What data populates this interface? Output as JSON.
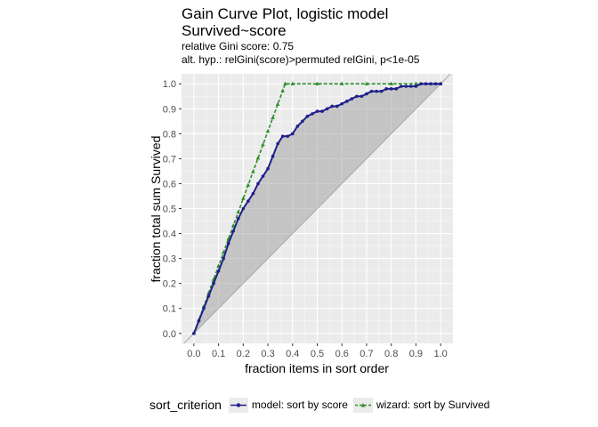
{
  "chart_data": {
    "type": "line",
    "title": "Gain Curve Plot, logistic model",
    "title_line2": "Survived~score",
    "subtitle_line1": "relative Gini score: 0.75",
    "subtitle_line2": "alt. hyp.: relGini(score)>permuted relGini, p<1e-05",
    "xlabel": "fraction items in sort order",
    "ylabel": "fraction total sum Survived",
    "xlim": [
      -0.05,
      1.05
    ],
    "ylim": [
      -0.04,
      1.04
    ],
    "x_ticks": [
      "0.0",
      "0.1",
      "0.2",
      "0.3",
      "0.4",
      "0.5",
      "0.6",
      "0.7",
      "0.8",
      "0.9",
      "1.0"
    ],
    "y_ticks": [
      "0.0",
      "0.1",
      "0.2",
      "0.3",
      "0.4",
      "0.5",
      "0.6",
      "0.7",
      "0.8",
      "0.9",
      "1.0"
    ],
    "grid": true,
    "legend_title": "sort_criterion",
    "legend_position": "bottom",
    "colors": {
      "model": "#1f1f8c",
      "wizard": "#2f8f2f",
      "panel": "#ebebeb",
      "shade": "#9e9e9e",
      "diagonal": "#a8a8a8"
    },
    "series": [
      {
        "name": "model: sort by score",
        "x": [
          0,
          0.02,
          0.04,
          0.06,
          0.08,
          0.1,
          0.12,
          0.14,
          0.16,
          0.18,
          0.2,
          0.22,
          0.24,
          0.26,
          0.28,
          0.3,
          0.32,
          0.34,
          0.36,
          0.38,
          0.4,
          0.42,
          0.44,
          0.46,
          0.48,
          0.5,
          0.52,
          0.54,
          0.56,
          0.58,
          0.6,
          0.62,
          0.64,
          0.66,
          0.68,
          0.7,
          0.72,
          0.74,
          0.76,
          0.78,
          0.8,
          0.82,
          0.84,
          0.86,
          0.88,
          0.9,
          0.92,
          0.94,
          0.96,
          0.98,
          1.0
        ],
        "y": [
          0,
          0.05,
          0.1,
          0.15,
          0.2,
          0.25,
          0.3,
          0.36,
          0.41,
          0.46,
          0.5,
          0.53,
          0.56,
          0.6,
          0.63,
          0.66,
          0.71,
          0.76,
          0.79,
          0.79,
          0.8,
          0.83,
          0.85,
          0.87,
          0.88,
          0.89,
          0.89,
          0.9,
          0.91,
          0.91,
          0.92,
          0.93,
          0.94,
          0.95,
          0.95,
          0.96,
          0.97,
          0.97,
          0.97,
          0.98,
          0.98,
          0.98,
          0.99,
          0.99,
          0.99,
          0.99,
          1.0,
          1.0,
          1.0,
          1.0,
          1.0
        ]
      },
      {
        "name": "wizard: sort by Survived",
        "x": [
          0,
          0.02,
          0.04,
          0.06,
          0.08,
          0.1,
          0.12,
          0.14,
          0.16,
          0.18,
          0.2,
          0.22,
          0.24,
          0.26,
          0.28,
          0.3,
          0.32,
          0.34,
          0.36,
          0.37,
          0.4,
          0.5,
          0.6,
          0.7,
          0.8,
          0.9,
          1.0
        ],
        "y": [
          0,
          0.054,
          0.108,
          0.162,
          0.216,
          0.27,
          0.324,
          0.378,
          0.432,
          0.486,
          0.54,
          0.594,
          0.648,
          0.702,
          0.756,
          0.81,
          0.864,
          0.918,
          0.972,
          1.0,
          1.0,
          1.0,
          1.0,
          1.0,
          1.0,
          1.0,
          1.0
        ]
      }
    ]
  }
}
